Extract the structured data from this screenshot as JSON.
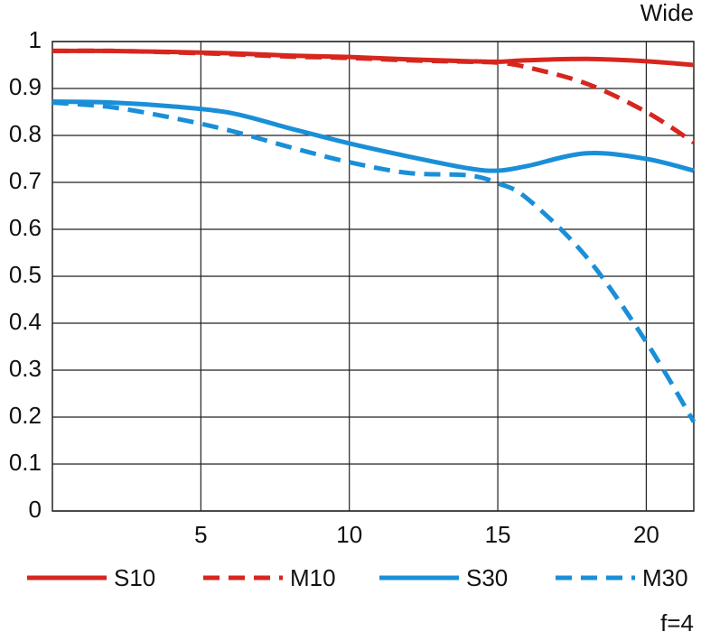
{
  "chart_data": {
    "type": "line",
    "title": "Wide",
    "annotations": [
      "f=4"
    ],
    "x": [
      0,
      2,
      4,
      6,
      8,
      10,
      12,
      14,
      15,
      16,
      18,
      20,
      21.6
    ],
    "series": [
      {
        "name": "S10",
        "color": "#d7261e",
        "line_style": "solid",
        "values": [
          0.98,
          0.98,
          0.978,
          0.975,
          0.97,
          0.967,
          0.962,
          0.958,
          0.957,
          0.96,
          0.963,
          0.958,
          0.95
        ]
      },
      {
        "name": "M10",
        "color": "#d7261e",
        "line_style": "dashed",
        "values": [
          0.98,
          0.98,
          0.977,
          0.973,
          0.968,
          0.965,
          0.96,
          0.957,
          0.955,
          0.945,
          0.91,
          0.85,
          0.785
        ]
      },
      {
        "name": "S30",
        "color": "#1a8fd8",
        "line_style": "solid",
        "values": [
          0.872,
          0.87,
          0.862,
          0.848,
          0.815,
          0.783,
          0.755,
          0.73,
          0.725,
          0.735,
          0.762,
          0.75,
          0.725
        ]
      },
      {
        "name": "M30",
        "color": "#1a8fd8",
        "line_style": "dashed",
        "values": [
          0.87,
          0.86,
          0.838,
          0.81,
          0.775,
          0.743,
          0.72,
          0.715,
          0.698,
          0.665,
          0.54,
          0.36,
          0.19
        ]
      }
    ],
    "xlim": [
      0,
      21.6
    ],
    "xticks": [
      5,
      10,
      15,
      20
    ],
    "ylim": [
      0,
      1
    ],
    "yticks": [
      0,
      0.1,
      0.2,
      0.3,
      0.4,
      0.5,
      0.6,
      0.7,
      0.8,
      0.9,
      1
    ],
    "grid": true,
    "legend": "bottom"
  }
}
